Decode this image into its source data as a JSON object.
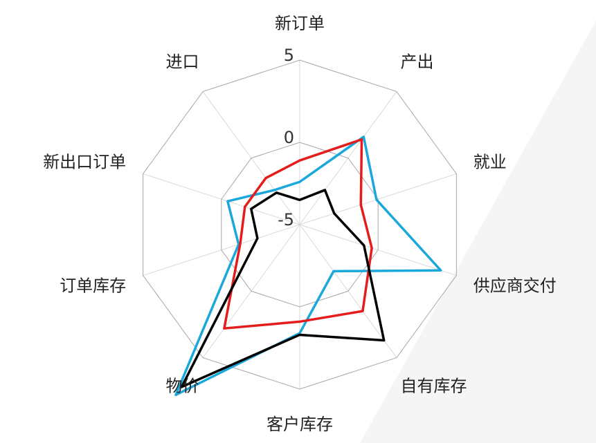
{
  "chart_data": {
    "type": "radar",
    "categories": [
      "新订单",
      "产出",
      "就业",
      "供应商交付",
      "自有库存",
      "客户库存",
      "物价",
      "订单库存",
      "新出口订单",
      "进口"
    ],
    "series": [
      {
        "color": "#1aa7dc",
        "values": [
          -2.4,
          1.6,
          -0.1,
          4.0,
          -1.5,
          1.6,
          7.8,
          -1.1,
          -0.4,
          -2.4
        ]
      },
      {
        "color": "#e51c1c",
        "values": [
          -1.1,
          1.4,
          -1.1,
          -0.4,
          1.5,
          0.9,
          2.8,
          -1.2,
          -1.5,
          -1.5
        ]
      },
      {
        "color": "#000000",
        "values": [
          -3.5,
          -2.4,
          -2.8,
          -0.9,
          3.7,
          1.7,
          7.2,
          -2.3,
          -1.9,
          -2.6
        ]
      }
    ],
    "ylim": [
      -5,
      5
    ],
    "yticks": [
      -5,
      0,
      5
    ],
    "grid": true
  }
}
